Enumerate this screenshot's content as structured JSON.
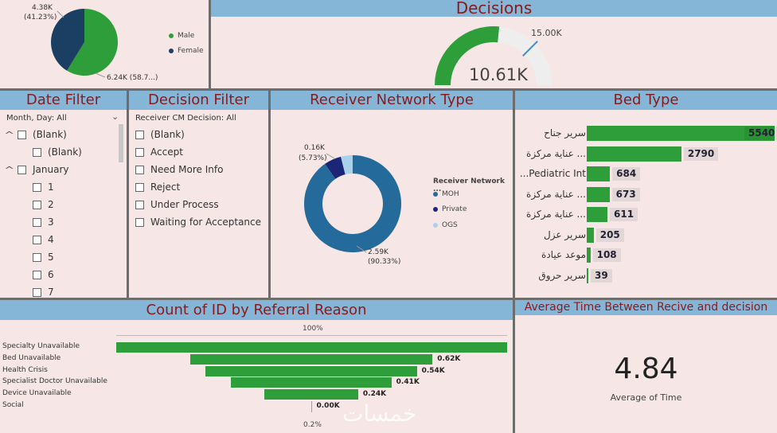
{
  "colors": {
    "green": "#2e9e3a",
    "navy": "#1b3f63",
    "blue": "#246a9a",
    "darknavy": "#1c2677",
    "lightblue": "#a9d1ec",
    "title_bar": "#85b6d8",
    "title_text": "#8b1a1a"
  },
  "gender": {
    "slices": [
      {
        "name": "Male",
        "value": 6.24,
        "label": "6.24K (58.7...)",
        "color": "#2e9e3a"
      },
      {
        "name": "Female",
        "value": 4.38,
        "label": "4.38K",
        "label2": "(41.23%)",
        "color": "#1b3f63"
      }
    ]
  },
  "decisions": {
    "title": "Decisions",
    "value": 10.61,
    "value_label": "10.61K",
    "target": 15.0,
    "target_label": "15.00K",
    "max": 20.0
  },
  "date_filter": {
    "title": "Date Filter",
    "header": "Month, Day: All",
    "rows": [
      {
        "label": "(Blank)",
        "level": 0,
        "expand": "^"
      },
      {
        "label": "(Blank)",
        "level": 1,
        "expand": ""
      },
      {
        "label": "January",
        "level": 0,
        "expand": "^"
      },
      {
        "label": "1",
        "level": 1,
        "expand": ""
      },
      {
        "label": "2",
        "level": 1,
        "expand": ""
      },
      {
        "label": "3",
        "level": 1,
        "expand": ""
      },
      {
        "label": "4",
        "level": 1,
        "expand": ""
      },
      {
        "label": "5",
        "level": 1,
        "expand": ""
      },
      {
        "label": "6",
        "level": 1,
        "expand": ""
      },
      {
        "label": "7",
        "level": 1,
        "expand": ""
      }
    ]
  },
  "decision_filter": {
    "title": "Decision Filter",
    "header": "Receiver CM Decision: All",
    "items": [
      "(Blank)",
      "Accept",
      "Need More Info",
      "Reject",
      "Under Process",
      "Waiting for Acceptance"
    ]
  },
  "network": {
    "title": "Receiver Network Type",
    "legend_title": "Receiver Network ...",
    "slices": [
      {
        "name": "MOH",
        "value": 90.33,
        "label": "2.59K",
        "label2": "(90.33%)",
        "color": "#246a9a"
      },
      {
        "name": "Private",
        "value": 5.73,
        "label": "0.16K",
        "label2": "(5.73%)",
        "color": "#1c2677"
      },
      {
        "name": "OGS",
        "value": 3.94,
        "color": "#a9d1ec"
      }
    ]
  },
  "bed_type": {
    "title": "Bed Type",
    "max": 5540,
    "items": [
      {
        "label": "سرير جناح",
        "value": 5540,
        "value_label": "5540"
      },
      {
        "label": "... عناية مركزة",
        "value": 2790,
        "value_label": "2790"
      },
      {
        "label": "Pediatric Int...",
        "value": 684,
        "value_label": "684"
      },
      {
        "label": "... عناية مركزة",
        "value": 673,
        "value_label": "673"
      },
      {
        "label": "... عناية مركزة",
        "value": 611,
        "value_label": "611"
      },
      {
        "label": "سرير عزل",
        "value": 205,
        "value_label": "205"
      },
      {
        "label": "موعد عيادة",
        "value": 108,
        "value_label": "108"
      },
      {
        "label": "سرير حروق",
        "value": 39,
        "value_label": "39"
      }
    ]
  },
  "referral": {
    "title": "Count of ID by Referral Reason",
    "top_label": "100%",
    "bottom_label": "0.2%",
    "max": 1.0,
    "items": [
      {
        "label": "Specialty Unavailable",
        "value": 1.0,
        "value_label": ""
      },
      {
        "label": "Bed Unavailable",
        "value": 0.62,
        "value_label": "0.62K"
      },
      {
        "label": "Health Crisis",
        "value": 0.54,
        "value_label": "0.54K"
      },
      {
        "label": "Specialist Doctor Unavailable",
        "value": 0.41,
        "value_label": "0.41K"
      },
      {
        "label": "Device Unavailable",
        "value": 0.24,
        "value_label": "0.24K"
      },
      {
        "label": "Social",
        "value": 0.002,
        "value_label": "0.00K"
      }
    ]
  },
  "avg_time": {
    "title": "Average Time Between Recive and decision",
    "value": "4.84",
    "caption": "Average of Time"
  },
  "watermark": "خمسات"
}
